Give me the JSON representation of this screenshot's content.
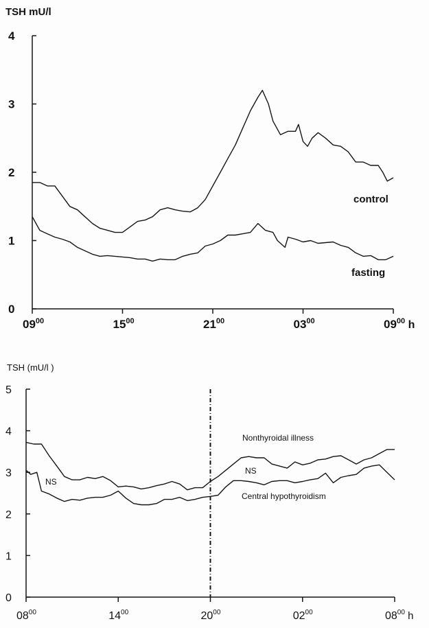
{
  "chart_data": [
    {
      "type": "line",
      "ylabel": "TSH mU/l",
      "xunit": "h",
      "ylim": [
        0,
        4
      ],
      "yticks": [
        "0",
        "1",
        "2",
        "3",
        "4"
      ],
      "xticks": [
        {
          "base": "09",
          "sup": "00"
        },
        {
          "base": "15",
          "sup": "00"
        },
        {
          "base": "21",
          "sup": "00"
        },
        {
          "base": "03",
          "sup": "00"
        },
        {
          "base": "09",
          "sup": "00"
        }
      ],
      "xlim_hours_from_start": [
        0,
        24
      ],
      "series": [
        {
          "name": "control",
          "points": [
            [
              0,
              1.85
            ],
            [
              0.5,
              1.85
            ],
            [
              1,
              1.8
            ],
            [
              1.5,
              1.8
            ],
            [
              2,
              1.65
            ],
            [
              2.5,
              1.5
            ],
            [
              3,
              1.45
            ],
            [
              3.5,
              1.35
            ],
            [
              4,
              1.25
            ],
            [
              4.5,
              1.18
            ],
            [
              5,
              1.15
            ],
            [
              5.5,
              1.12
            ],
            [
              6,
              1.12
            ],
            [
              6.5,
              1.2
            ],
            [
              7,
              1.28
            ],
            [
              7.5,
              1.3
            ],
            [
              8,
              1.35
            ],
            [
              8.5,
              1.45
            ],
            [
              9,
              1.48
            ],
            [
              9.5,
              1.45
            ],
            [
              10,
              1.43
            ],
            [
              10.5,
              1.42
            ],
            [
              11,
              1.48
            ],
            [
              11.5,
              1.6
            ],
            [
              12,
              1.8
            ],
            [
              12.5,
              2.0
            ],
            [
              13,
              2.2
            ],
            [
              13.5,
              2.4
            ],
            [
              14,
              2.65
            ],
            [
              14.5,
              2.9
            ],
            [
              15,
              3.1
            ],
            [
              15.3,
              3.2
            ],
            [
              15.7,
              3.0
            ],
            [
              16,
              2.75
            ],
            [
              16.5,
              2.55
            ],
            [
              17,
              2.6
            ],
            [
              17.5,
              2.6
            ],
            [
              17.7,
              2.7
            ],
            [
              18,
              2.45
            ],
            [
              18.3,
              2.38
            ],
            [
              18.6,
              2.5
            ],
            [
              19,
              2.58
            ],
            [
              19.5,
              2.5
            ],
            [
              20,
              2.4
            ],
            [
              20.5,
              2.38
            ],
            [
              21,
              2.3
            ],
            [
              21.5,
              2.15
            ],
            [
              22,
              2.15
            ],
            [
              22.5,
              2.1
            ],
            [
              23,
              2.1
            ],
            [
              23.3,
              2.0
            ],
            [
              23.6,
              1.87
            ],
            [
              24,
              1.92
            ]
          ]
        },
        {
          "name": "fasting",
          "points": [
            [
              0,
              1.35
            ],
            [
              0.5,
              1.15
            ],
            [
              1,
              1.1
            ],
            [
              1.5,
              1.05
            ],
            [
              2,
              1.02
            ],
            [
              2.5,
              0.98
            ],
            [
              3,
              0.9
            ],
            [
              3.5,
              0.85
            ],
            [
              4,
              0.8
            ],
            [
              4.5,
              0.77
            ],
            [
              5,
              0.78
            ],
            [
              5.5,
              0.77
            ],
            [
              6,
              0.76
            ],
            [
              6.5,
              0.75
            ],
            [
              7,
              0.73
            ],
            [
              7.5,
              0.73
            ],
            [
              8,
              0.7
            ],
            [
              8.5,
              0.73
            ],
            [
              9,
              0.72
            ],
            [
              9.5,
              0.72
            ],
            [
              10,
              0.77
            ],
            [
              10.5,
              0.8
            ],
            [
              11,
              0.82
            ],
            [
              11.5,
              0.92
            ],
            [
              12,
              0.95
            ],
            [
              12.5,
              1.0
            ],
            [
              13,
              1.08
            ],
            [
              13.5,
              1.08
            ],
            [
              14,
              1.1
            ],
            [
              14.5,
              1.12
            ],
            [
              15,
              1.25
            ],
            [
              15.5,
              1.15
            ],
            [
              16,
              1.12
            ],
            [
              16.3,
              1.0
            ],
            [
              16.8,
              0.9
            ],
            [
              17,
              1.05
            ],
            [
              17.5,
              1.02
            ],
            [
              18,
              0.98
            ],
            [
              18.5,
              1.0
            ],
            [
              19,
              0.96
            ],
            [
              19.5,
              0.97
            ],
            [
              20,
              0.98
            ],
            [
              20.5,
              0.93
            ],
            [
              21,
              0.9
            ],
            [
              21.5,
              0.82
            ],
            [
              22,
              0.77
            ],
            [
              22.5,
              0.78
            ],
            [
              23,
              0.72
            ],
            [
              23.5,
              0.72
            ],
            [
              24,
              0.77
            ]
          ]
        }
      ]
    },
    {
      "type": "line",
      "ylabel": "TSH (mU/l )",
      "xunit": "h",
      "ylim": [
        0,
        5
      ],
      "yticks": [
        "0",
        "1",
        "2",
        "3",
        "4",
        "5"
      ],
      "xticks": [
        {
          "base": "08",
          "sup": "00"
        },
        {
          "base": "14",
          "sup": "00"
        },
        {
          "base": "20",
          "sup": "00"
        },
        {
          "base": "02",
          "sup": "00"
        },
        {
          "base": "08",
          "sup": "00"
        }
      ],
      "xlim_hours_from_start": [
        0,
        24
      ],
      "vertical_marker_hour": 12,
      "annotations": [
        "NS",
        "NS"
      ],
      "series": [
        {
          "name": "Nonthyroidal illness",
          "points": [
            [
              0,
              3.72
            ],
            [
              0.5,
              3.68
            ],
            [
              1,
              3.68
            ],
            [
              1.5,
              3.4
            ],
            [
              2,
              3.15
            ],
            [
              2.5,
              2.9
            ],
            [
              3,
              2.82
            ],
            [
              3.5,
              2.82
            ],
            [
              4,
              2.88
            ],
            [
              4.5,
              2.85
            ],
            [
              5,
              2.9
            ],
            [
              5.5,
              2.8
            ],
            [
              6,
              2.65
            ],
            [
              6.5,
              2.67
            ],
            [
              7,
              2.65
            ],
            [
              7.5,
              2.6
            ],
            [
              8,
              2.63
            ],
            [
              8.5,
              2.68
            ],
            [
              9,
              2.72
            ],
            [
              9.5,
              2.78
            ],
            [
              10,
              2.72
            ],
            [
              10.5,
              2.58
            ],
            [
              11,
              2.63
            ],
            [
              11.5,
              2.63
            ],
            [
              12,
              2.78
            ],
            [
              12.5,
              2.9
            ],
            [
              13,
              3.05
            ],
            [
              13.5,
              3.2
            ],
            [
              14,
              3.35
            ],
            [
              14.5,
              3.38
            ],
            [
              15,
              3.35
            ],
            [
              15.5,
              3.35
            ],
            [
              16,
              3.2
            ],
            [
              16.5,
              3.15
            ],
            [
              17,
              3.1
            ],
            [
              17.5,
              3.25
            ],
            [
              18,
              3.18
            ],
            [
              18.5,
              3.22
            ],
            [
              19,
              3.3
            ],
            [
              19.5,
              3.32
            ],
            [
              20,
              3.38
            ],
            [
              20.5,
              3.4
            ],
            [
              21,
              3.3
            ],
            [
              21.5,
              3.2
            ],
            [
              22,
              3.3
            ],
            [
              22.5,
              3.35
            ],
            [
              23,
              3.45
            ],
            [
              23.5,
              3.55
            ],
            [
              24,
              3.55
            ]
          ]
        },
        {
          "name": "Central hypothyroidism",
          "points": [
            [
              0,
              3.05
            ],
            [
              0.3,
              2.95
            ],
            [
              0.7,
              3.0
            ],
            [
              1,
              2.55
            ],
            [
              1.5,
              2.48
            ],
            [
              2,
              2.38
            ],
            [
              2.5,
              2.3
            ],
            [
              3,
              2.35
            ],
            [
              3.5,
              2.33
            ],
            [
              4,
              2.38
            ],
            [
              4.5,
              2.4
            ],
            [
              5,
              2.4
            ],
            [
              5.5,
              2.45
            ],
            [
              6,
              2.55
            ],
            [
              6.5,
              2.38
            ],
            [
              7,
              2.25
            ],
            [
              7.5,
              2.22
            ],
            [
              8,
              2.22
            ],
            [
              8.5,
              2.25
            ],
            [
              9,
              2.35
            ],
            [
              9.5,
              2.35
            ],
            [
              10,
              2.4
            ],
            [
              10.5,
              2.32
            ],
            [
              11,
              2.35
            ],
            [
              11.5,
              2.4
            ],
            [
              12,
              2.42
            ],
            [
              12.5,
              2.45
            ],
            [
              13,
              2.65
            ],
            [
              13.5,
              2.8
            ],
            [
              14,
              2.8
            ],
            [
              14.5,
              2.78
            ],
            [
              15,
              2.75
            ],
            [
              15.5,
              2.7
            ],
            [
              16,
              2.78
            ],
            [
              16.5,
              2.8
            ],
            [
              17,
              2.8
            ],
            [
              17.5,
              2.75
            ],
            [
              18,
              2.78
            ],
            [
              18.5,
              2.82
            ],
            [
              19,
              2.85
            ],
            [
              19.5,
              2.98
            ],
            [
              20,
              2.75
            ],
            [
              20.5,
              2.88
            ],
            [
              21,
              2.92
            ],
            [
              21.5,
              2.95
            ],
            [
              22,
              3.1
            ],
            [
              22.5,
              3.15
            ],
            [
              23,
              3.18
            ],
            [
              23.5,
              3.0
            ],
            [
              24,
              2.82
            ]
          ]
        }
      ]
    }
  ]
}
